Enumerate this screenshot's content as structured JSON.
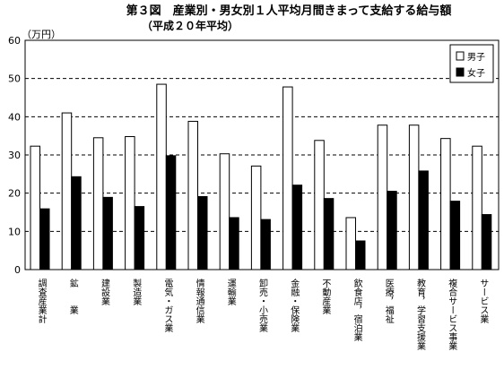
{
  "chart_data": {
    "type": "bar",
    "title": "第３図　産業別・男女別１人平均月間きまって支給する給与額",
    "subtitle": "（平成２０年平均）",
    "ylabel": "（万円）",
    "ylim": [
      0,
      60
    ],
    "yticks": [
      0,
      10,
      20,
      30,
      40,
      50,
      60
    ],
    "grid": true,
    "legend_position": "top-right",
    "categories": [
      "調査産業計",
      "鉱　　業",
      "建設業",
      "製造業",
      "電気・ガス業",
      "情報通信業",
      "運輸業",
      "卸売・小売業",
      "金融・保険業",
      "不動産業",
      "飲食店，宿泊業",
      "医療，福祉",
      "教育，学習支援業",
      "複合サービス事業",
      "サービス業"
    ],
    "series": [
      {
        "name": "男子",
        "color": "#ffffff",
        "values": [
          32.3,
          41.0,
          34.5,
          34.8,
          48.5,
          38.8,
          30.3,
          27.1,
          47.8,
          33.8,
          13.6,
          37.8,
          37.8,
          34.3,
          32.3
        ]
      },
      {
        "name": "女子",
        "color": "#000000",
        "values": [
          15.9,
          24.3,
          18.9,
          16.5,
          29.8,
          19.1,
          13.6,
          13.1,
          22.1,
          18.6,
          7.5,
          20.5,
          25.8,
          17.9,
          14.4
        ]
      }
    ]
  }
}
